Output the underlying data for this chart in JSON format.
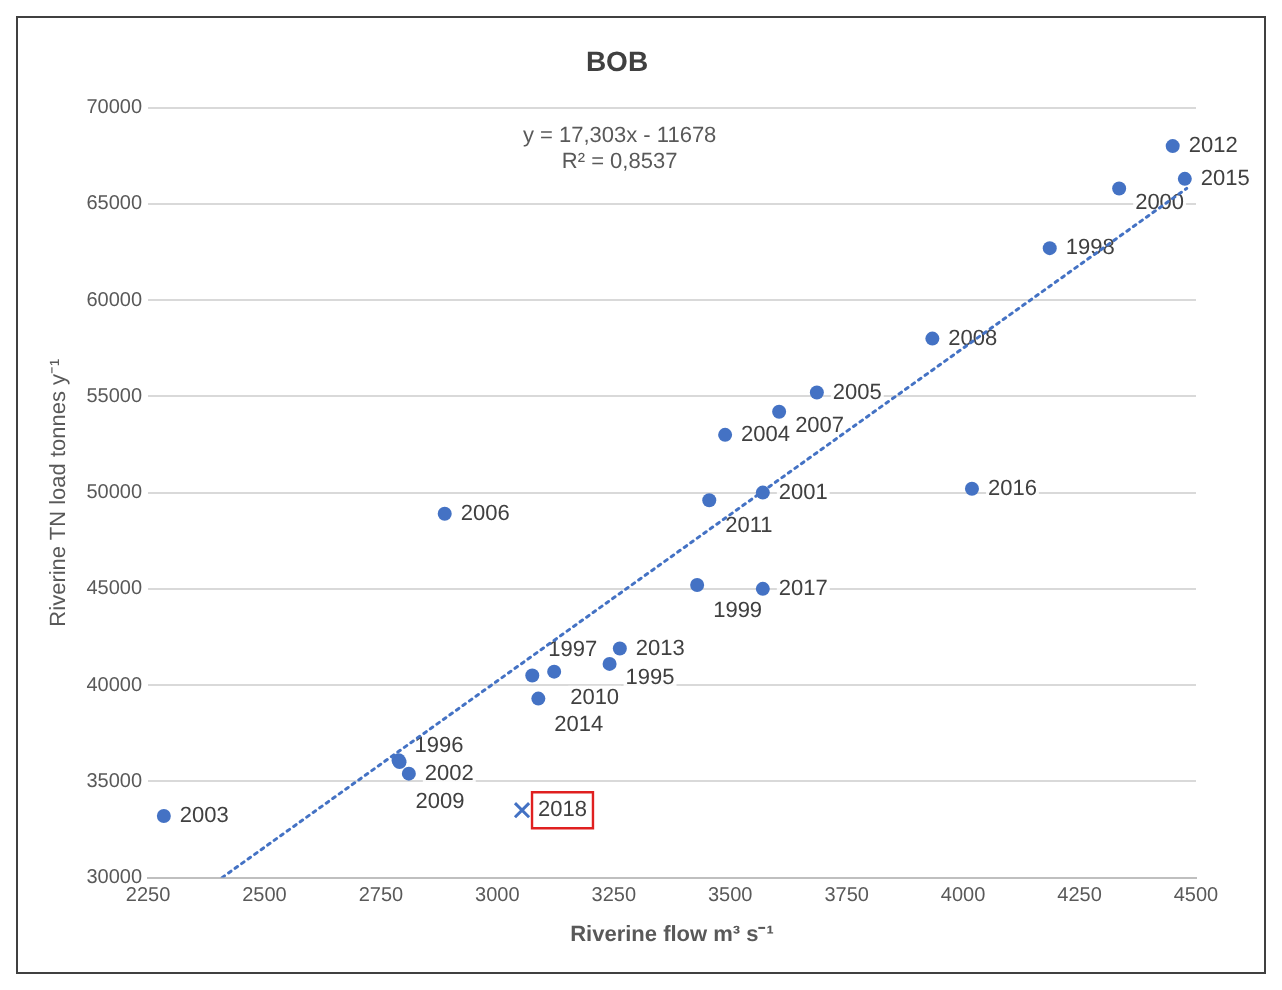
{
  "chart_data": {
    "type": "scatter",
    "title": "BOB",
    "xlabel": "Riverine flow m³ s⁻¹",
    "ylabel": "Riverine TN load tonnes y⁻¹",
    "xlim": [
      2250,
      4500
    ],
    "xticks": [
      2250,
      2500,
      2750,
      3000,
      3250,
      3500,
      3750,
      4000,
      4250,
      4500
    ],
    "ylim": [
      30000,
      70000
    ],
    "yticks": [
      30000,
      35000,
      40000,
      45000,
      50000,
      55000,
      60000,
      65000,
      70000
    ],
    "grid": "y",
    "legend": false,
    "marker": "circle",
    "series": [
      {
        "color": "#4472c4",
        "x": [
          2284,
          2887,
          2788,
          2790,
          2810,
          3075,
          3122,
          3088,
          3241,
          3263,
          3429,
          3570,
          3455,
          3570,
          3489,
          3605,
          3686,
          3934,
          4019,
          4186,
          4335,
          4450,
          4476
        ],
        "values": [
          33200,
          48900,
          36100,
          36000,
          35400,
          40500,
          40700,
          39300,
          41100,
          41900,
          45200,
          45000,
          49600,
          50000,
          53000,
          54200,
          55200,
          58000,
          50200,
          62700,
          65800,
          68000,
          66300
        ]
      },
      {
        "color": "#4472c4",
        "marker": "cross",
        "x": [
          3053
        ],
        "values": [
          33500
        ]
      },
      {
        "type": "line",
        "color": "#4472c4",
        "marker": "none",
        "line_style": "dotted",
        "x": [
          2409,
          4480
        ],
        "values": [
          30000,
          65800
        ]
      }
    ],
    "annotations": [
      "y = 17,303x - 11678",
      "R² = 0,8537",
      {
        "text": "2003",
        "x": 2284,
        "y": 33200
      },
      {
        "text": "2006",
        "x": 2887,
        "y": 48900
      },
      {
        "text": "1996",
        "x": 2788,
        "y": 36100
      },
      {
        "text": "2009",
        "x": 2790,
        "y": 36000
      },
      {
        "text": "2002",
        "x": 2810,
        "y": 35400
      },
      {
        "text": "1997",
        "x": 3075,
        "y": 40500
      },
      {
        "text": "2010",
        "x": 3122,
        "y": 40700
      },
      {
        "text": "2014",
        "x": 3088,
        "y": 39300
      },
      {
        "text": "1995",
        "x": 3241,
        "y": 41100
      },
      {
        "text": "2013",
        "x": 3263,
        "y": 41900
      },
      {
        "text": "1999",
        "x": 3429,
        "y": 45200
      },
      {
        "text": "2017",
        "x": 3570,
        "y": 45000
      },
      {
        "text": "2011",
        "x": 3455,
        "y": 49600
      },
      {
        "text": "2001",
        "x": 3570,
        "y": 50000
      },
      {
        "text": "2004",
        "x": 3489,
        "y": 53000
      },
      {
        "text": "2007",
        "x": 3605,
        "y": 54200
      },
      {
        "text": "2005",
        "x": 3686,
        "y": 55200
      },
      {
        "text": "2008",
        "x": 3934,
        "y": 58000
      },
      {
        "text": "2016",
        "x": 4019,
        "y": 50200
      },
      {
        "text": "1998",
        "x": 4186,
        "y": 62700
      },
      {
        "text": "2000",
        "x": 4335,
        "y": 65800
      },
      {
        "text": "2012",
        "x": 4450,
        "y": 68000
      },
      {
        "text": "2015",
        "x": 4476,
        "y": 66300
      },
      {
        "text": "2018",
        "x": 3053,
        "y": 33500
      }
    ]
  }
}
